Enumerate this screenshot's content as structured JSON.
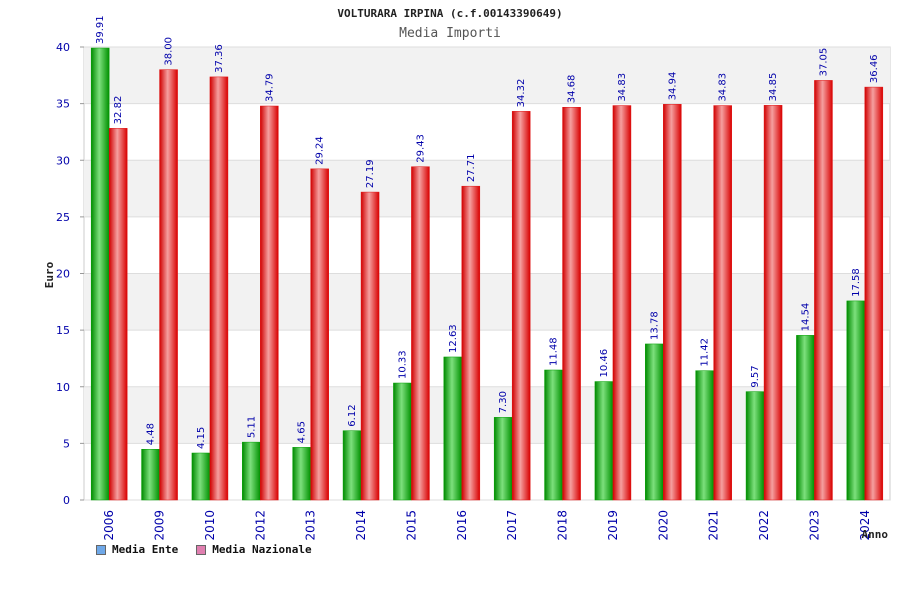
{
  "chart_data": {
    "type": "bar",
    "title": "VOLTURARA IRPINA (c.f.00143390649)",
    "subtitle": "Media Importi",
    "xlabel": "Anno",
    "ylabel": "Euro",
    "ylim": [
      0,
      40
    ],
    "yticks": [
      "0",
      "5",
      "10",
      "15",
      "20",
      "25",
      "30",
      "35",
      "40"
    ],
    "grid": true,
    "legend_position": "bottom-left",
    "categories": [
      "2006",
      "2009",
      "2010",
      "2012",
      "2013",
      "2014",
      "2015",
      "2016",
      "2017",
      "2018",
      "2019",
      "2020",
      "2021",
      "2022",
      "2023",
      "2024"
    ],
    "series": [
      {
        "name": "Media Ente",
        "color": "#00a000",
        "legend_color": "#6fa8e8",
        "values": [
          39.91,
          4.48,
          4.15,
          5.11,
          4.65,
          6.12,
          10.33,
          12.63,
          7.3,
          11.48,
          10.46,
          13.78,
          11.42,
          9.57,
          14.54,
          17.58
        ],
        "labels": [
          "39.91",
          "4.48",
          "4.15",
          "5.11",
          "4.65",
          "6.12",
          "10.33",
          "12.63",
          "7.30",
          "11.48",
          "10.46",
          "13.78",
          "11.42",
          "9.57",
          "14.54",
          "17.58"
        ]
      },
      {
        "name": "Media Nazionale",
        "color": "#e01010",
        "legend_color": "#e07fb0",
        "values": [
          32.82,
          38.0,
          37.36,
          34.79,
          29.24,
          27.19,
          29.43,
          27.71,
          34.32,
          34.68,
          34.83,
          34.94,
          34.83,
          34.85,
          37.05,
          36.46
        ],
        "labels": [
          "32.82",
          "38.00",
          "37.36",
          "34.79",
          "29.24",
          "27.19",
          "29.43",
          "27.71",
          "34.32",
          "34.68",
          "34.83",
          "34.94",
          "34.83",
          "34.85",
          "37.05",
          "36.46"
        ]
      }
    ]
  }
}
